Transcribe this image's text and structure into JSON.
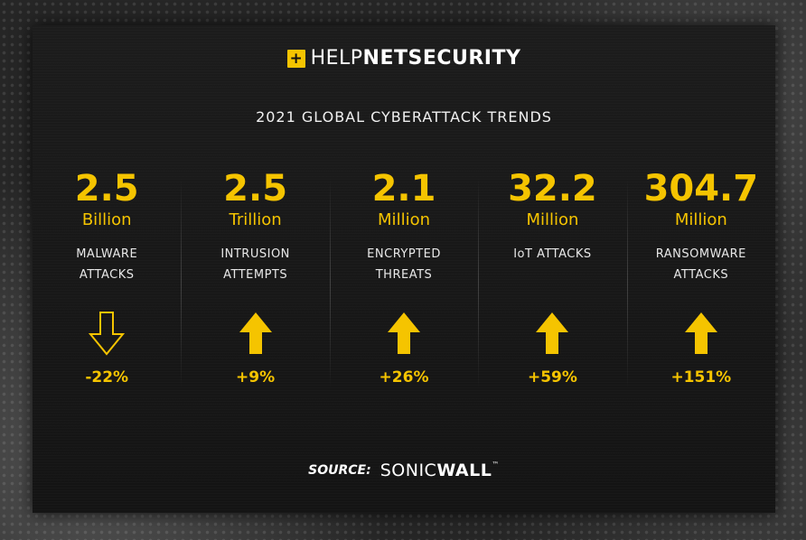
{
  "logo": {
    "box_glyph": "+",
    "help": "HELP",
    "net": "NET",
    "security": "SECURITY"
  },
  "title": "2021 GLOBAL CYBERATTACK TRENDS",
  "colors": {
    "accent": "#f5c400",
    "text": "#ffffff",
    "card": "#181818"
  },
  "stats": [
    {
      "value": "2.5",
      "unit": "Billion",
      "label": "MALWARE\nATTACKS",
      "change": "-22%",
      "direction": "down"
    },
    {
      "value": "2.5",
      "unit": "Trillion",
      "label": "INTRUSION\nATTEMPTS",
      "change": "+9%",
      "direction": "up"
    },
    {
      "value": "2.1",
      "unit": "Million",
      "label": "ENCRYPTED\nTHREATS",
      "change": "+26%",
      "direction": "up"
    },
    {
      "value": "32.2",
      "unit": "Million",
      "label": "IoT ATTACKS",
      "change": "+59%",
      "direction": "up"
    },
    {
      "value": "304.7",
      "unit": "Million",
      "label": "RANSOMWARE\nATTACKS",
      "change": "+151%",
      "direction": "up"
    }
  ],
  "source": {
    "label": "SOURCE:",
    "brand_a": "SONIC",
    "brand_b": "WALL",
    "tm": "™"
  }
}
